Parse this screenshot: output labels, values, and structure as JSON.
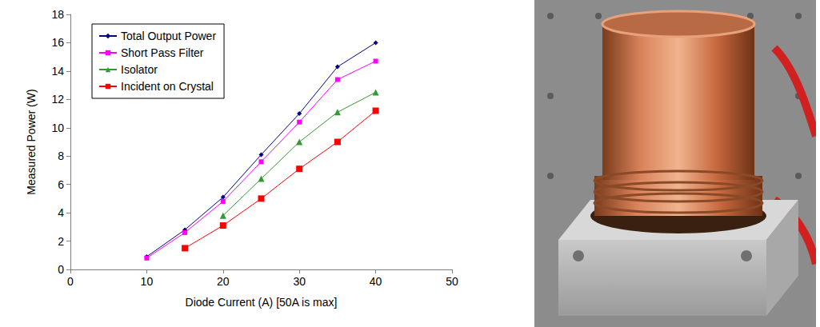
{
  "chart_data": {
    "type": "line",
    "x_label": "Diode Current (A) [50A is max]",
    "y_label": "Measured Power (W)",
    "x": [
      10,
      15,
      20,
      25,
      30,
      35,
      40
    ],
    "series": [
      {
        "name": "Total Output Power",
        "color": "#000080",
        "marker": "diamond",
        "values": [
          0.9,
          2.8,
          5.1,
          8.1,
          11.0,
          14.3,
          16.0
        ]
      },
      {
        "name": "Short Pass Filter",
        "color": "#ff00ff",
        "marker": "square",
        "values": [
          0.8,
          2.6,
          4.8,
          7.6,
          10.4,
          13.4,
          14.7
        ]
      },
      {
        "name": "Isolator",
        "color": "#339933",
        "marker": "triangle",
        "values": [
          null,
          null,
          3.8,
          6.4,
          9.0,
          11.1,
          12.5
        ]
      },
      {
        "name": "Incident on Crystal",
        "color": "#ff0000",
        "marker": "square",
        "values": [
          null,
          1.5,
          3.1,
          5.0,
          7.1,
          9.0,
          11.2
        ]
      }
    ],
    "xlim": [
      0,
      50
    ],
    "xticks": [
      0,
      10,
      20,
      30,
      40,
      50
    ],
    "ylim": [
      0,
      18
    ],
    "yticks": [
      0,
      2,
      4,
      6,
      8,
      10,
      12,
      14,
      16,
      18
    ],
    "grid": false,
    "legend": "upper left"
  }
}
